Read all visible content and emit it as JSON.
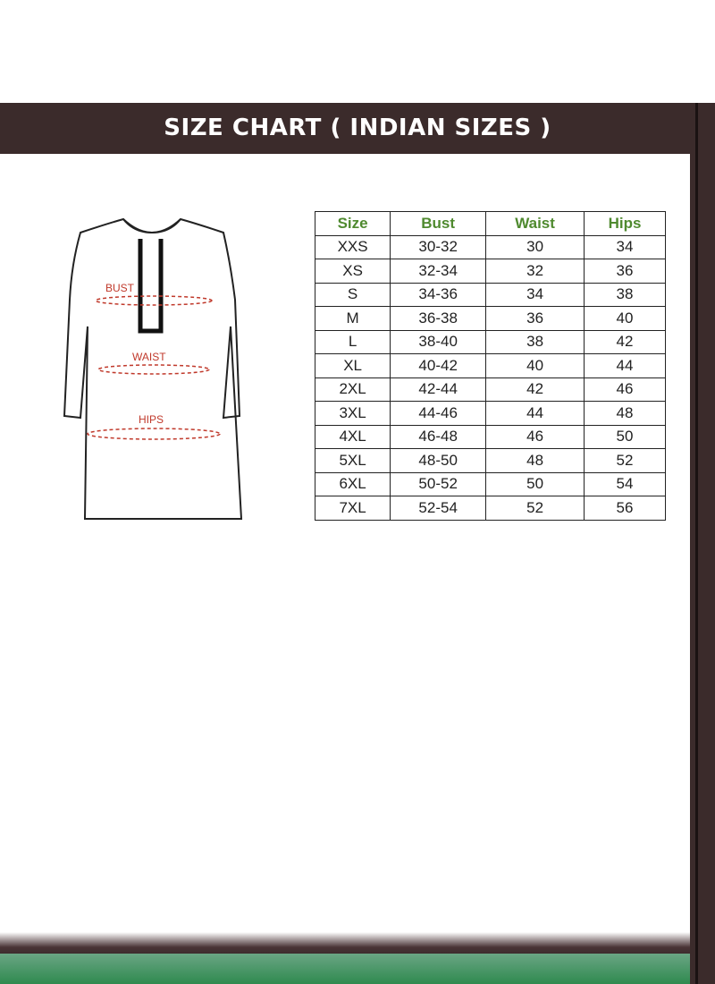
{
  "header": {
    "title": "SIZE CHART ( INDIAN SIZES )"
  },
  "illustration": {
    "labels": {
      "bust": "BUST",
      "waist": "WAIST",
      "hips": "HIPS"
    },
    "label_color": "#c0392b"
  },
  "table": {
    "columns": [
      "Size",
      "Bust",
      "Waist",
      "Hips"
    ],
    "rows": [
      [
        "XXS",
        "30-32",
        "30",
        "34"
      ],
      [
        "XS",
        "32-34",
        "32",
        "36"
      ],
      [
        "S",
        "34-36",
        "34",
        "38"
      ],
      [
        "M",
        "36-38",
        "36",
        "40"
      ],
      [
        "L",
        "38-40",
        "38",
        "42"
      ],
      [
        "XL",
        "40-42",
        "40",
        "44"
      ],
      [
        "2XL",
        "42-44",
        "42",
        "46"
      ],
      [
        "3XL",
        "44-46",
        "44",
        "48"
      ],
      [
        "4XL",
        "46-48",
        "46",
        "50"
      ],
      [
        "5XL",
        "48-50",
        "48",
        "52"
      ],
      [
        "6XL",
        "50-52",
        "50",
        "54"
      ],
      [
        "7XL",
        "52-54",
        "52",
        "56"
      ]
    ],
    "header_color": "#4f8a2f"
  },
  "colors": {
    "header_bg": "#3b2b2b",
    "footer_green": "#2f8a4f"
  }
}
